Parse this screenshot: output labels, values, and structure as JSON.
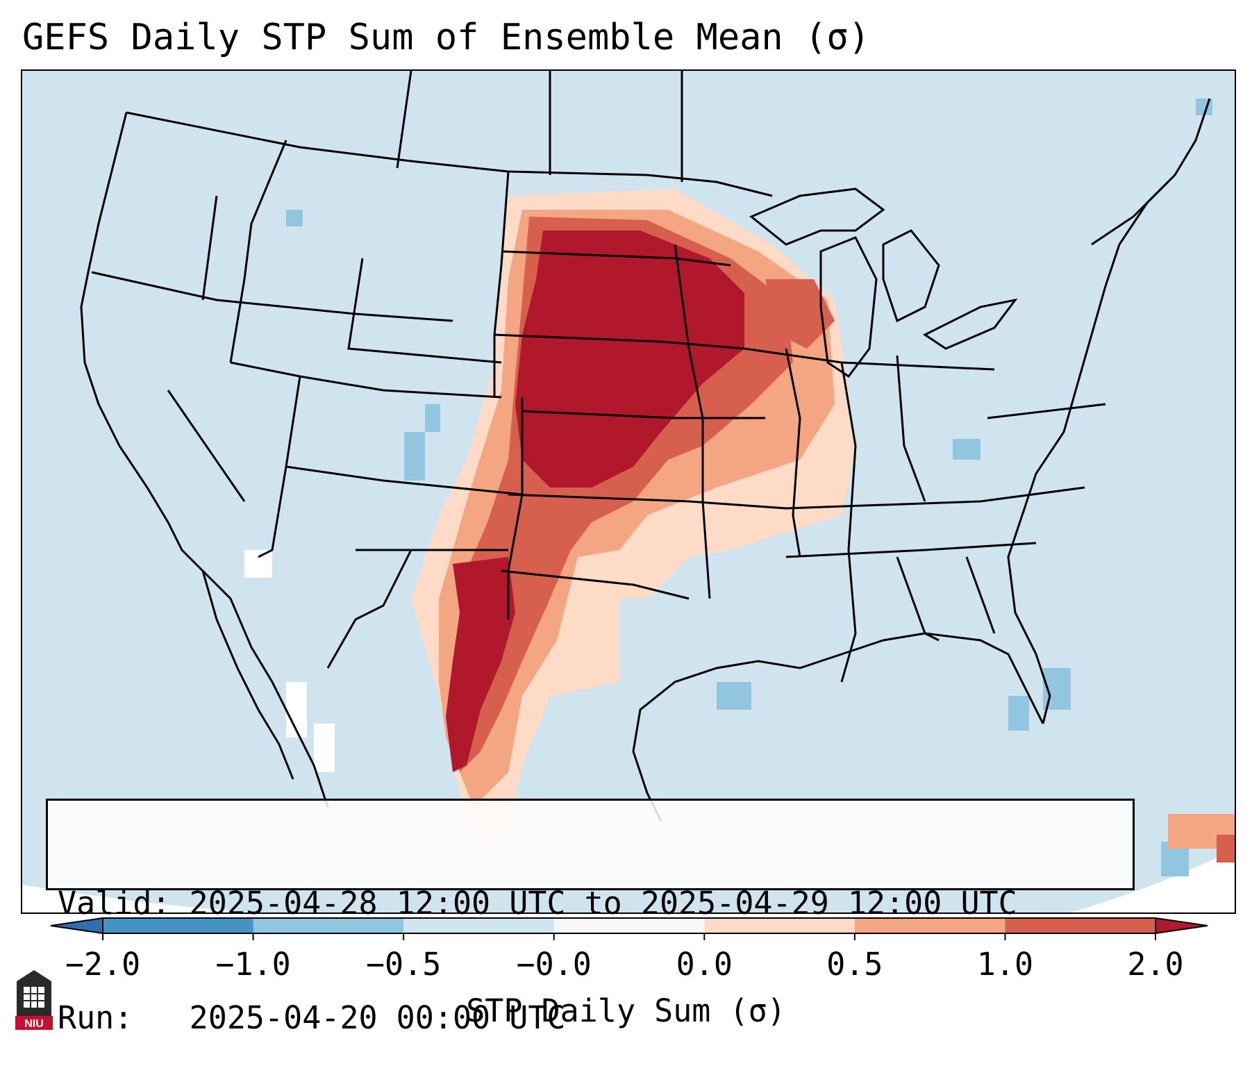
{
  "title": "GEFS Daily STP Sum of Ensemble Mean (σ)",
  "info": {
    "valid_label": "Valid:",
    "valid_value": "2025-04-28 12:00 UTC to 2025-04-29 12:00 UTC",
    "run_label": "Run:",
    "run_value": "2025-04-20 00:00 UTC"
  },
  "colorbar": {
    "label": "STP Daily Sum (σ)",
    "tick_labels": [
      "−2.0",
      "−1.0",
      "−0.5",
      "−0.0",
      "0.0",
      "0.5",
      "1.0",
      "2.0"
    ],
    "colors": [
      "#2f6fb0",
      "#4393c3",
      "#92c5de",
      "#d1e5f0",
      "#f7f7f7",
      "#fddbc7",
      "#f4a582",
      "#d6604d",
      "#b2182b"
    ]
  },
  "logo": {
    "text": "NIU"
  },
  "map": {
    "region": "Continental United States",
    "anomaly_regions": [
      {
        "name": "northern-plains-max",
        "level": 2.0
      },
      {
        "name": "central-plains",
        "level": 1.0
      },
      {
        "name": "upper-midwest",
        "level": 1.0
      },
      {
        "name": "southern-high-plains",
        "level": 1.0
      },
      {
        "name": "west-texas",
        "level": 1.0
      },
      {
        "name": "iowa-wisconsin-fringe",
        "level": 0.5
      },
      {
        "name": "illinois-light",
        "level": 0.0
      }
    ]
  }
}
